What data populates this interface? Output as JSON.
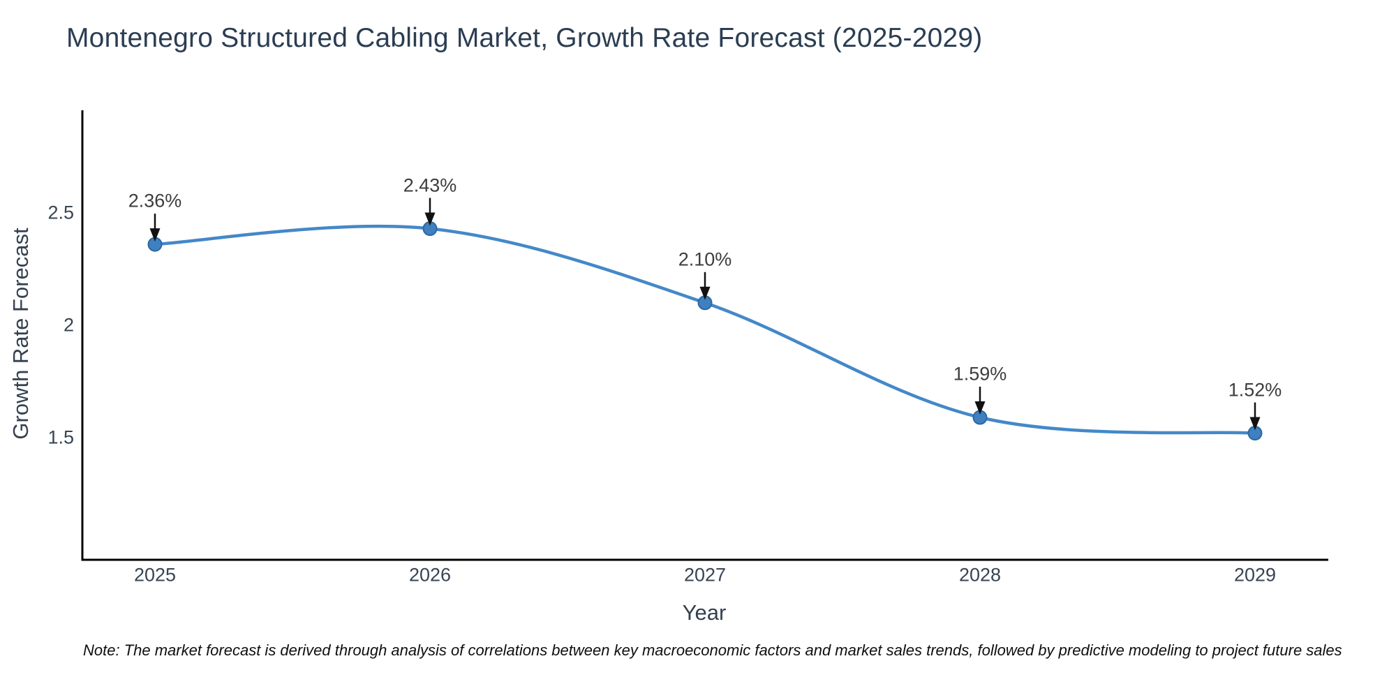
{
  "page": {
    "note": "Note: The market forecast is derived through analysis of correlations between key macroeconomic factors and market sales trends, followed by predictive modeling to project future sales"
  },
  "chart_data": {
    "type": "line",
    "title": "Montenegro Structured Cabling Market, Growth Rate Forecast (2025-2029)",
    "xlabel": "Year",
    "ylabel": "Growth Rate Forecast",
    "x": [
      2025,
      2026,
      2027,
      2028,
      2029
    ],
    "values": [
      2.36,
      2.43,
      2.1,
      1.59,
      1.52
    ],
    "point_labels": [
      "2.36%",
      "2.43%",
      "2.10%",
      "1.59%",
      "1.52%"
    ],
    "x_ticks": [
      {
        "label": "2025",
        "value": 2025
      },
      {
        "label": "2026",
        "value": 2026
      },
      {
        "label": "2027",
        "value": 2027
      },
      {
        "label": "2028",
        "value": 2028
      },
      {
        "label": "2029",
        "value": 2029
      }
    ],
    "y_ticks": [
      {
        "label": "2.5",
        "value": 2.5
      },
      {
        "label": "2",
        "value": 2.0
      },
      {
        "label": "1.5",
        "value": 1.5
      }
    ],
    "ylim": [
      0.95,
      2.95
    ],
    "xlim": [
      2024.73,
      2029.27
    ],
    "grid": false,
    "legend": "none",
    "line_style": "smooth-spline",
    "markers": "circle",
    "annotations": "value-labels-with-down-arrows",
    "colors": {
      "line": "#4488c8",
      "marker_fill": "#3f80c0",
      "marker_edge": "#2d689f",
      "arrow": "#111111",
      "title_text": "#2b3d52",
      "axis_label_text": "#33404f",
      "tick_text": "#374453",
      "annotation_text": "#3d3d3d",
      "note_text": "#0f0f0f",
      "axis_spine": "#000000"
    }
  }
}
